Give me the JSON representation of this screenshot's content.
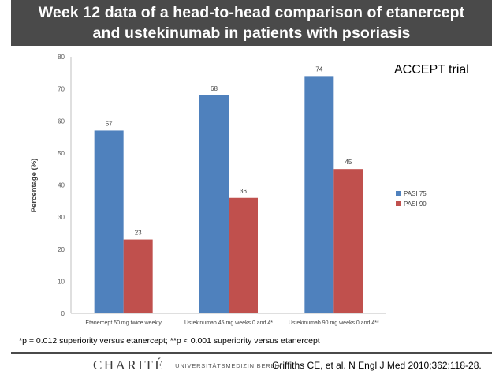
{
  "slide": {
    "title_line1": "Week 12 data of a head-to-head comparison of etanercept",
    "title_line2": "and ustekinumab in patients with psoriasis",
    "subtitle": "ACCEPT trial",
    "footnote": "*p = 0.012 superiority versus etanercept; **p < 0.001 superiority versus etanercept",
    "logo_text": "CHARITÉ",
    "logo_subtext": "UNIVERSITÄTSMEDIZIN BERLIN",
    "citation": "Griffiths CE, et al. N Engl J Med 2010;362:118-28."
  },
  "chart_data": {
    "type": "bar",
    "ylabel": "Percentage (%)",
    "xlabel": "",
    "ylim": [
      0,
      80
    ],
    "yticks": [
      0,
      10,
      20,
      30,
      40,
      50,
      60,
      70,
      80
    ],
    "grid": "none",
    "legend_position": "right",
    "categories": [
      "Etanercept 50 mg twice weekly",
      "Ustekinumab 45 mg weeks 0 and 4*",
      "Ustekinumab 90 mg weeks 0 and 4**"
    ],
    "series": [
      {
        "name": "PASI 75",
        "color": "#4f81bd",
        "values": [
          57,
          68,
          74
        ]
      },
      {
        "name": "PASI 90",
        "color": "#c0504d",
        "values": [
          23,
          36,
          45
        ]
      }
    ],
    "data_labels": true
  }
}
